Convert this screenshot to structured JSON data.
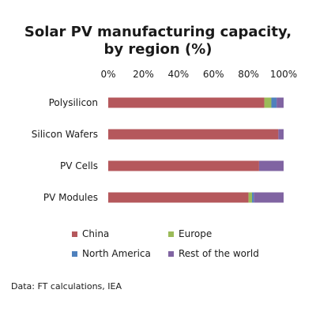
{
  "chart_data": {
    "type": "bar",
    "orientation": "horizontal",
    "stacked": true,
    "title": [
      "Solar PV manufacturing capacity,",
      "by region (%)"
    ],
    "categories": [
      "Polysilicon",
      "Silicon Wafers",
      "PV Cells",
      "PV Modules"
    ],
    "series": [
      {
        "name": "China",
        "color": "#b5585c",
        "values": [
          89,
          97,
          86,
          80
        ]
      },
      {
        "name": "Europe",
        "color": "#9bbb59",
        "values": [
          4,
          0,
          0,
          2
        ]
      },
      {
        "name": "North America",
        "color": "#4f81bd",
        "values": [
          3,
          0,
          0,
          1
        ]
      },
      {
        "name": "Rest of the world",
        "color": "#8064a2",
        "values": [
          4,
          3,
          14,
          17
        ]
      }
    ],
    "xlim": [
      0,
      100
    ],
    "x_ticks": [
      "0%",
      "20%",
      "40%",
      "60%",
      "80%",
      "100%"
    ],
    "x_tick_values": [
      0,
      20,
      40,
      60,
      80,
      100
    ],
    "x_axis_position": "top",
    "grid": false,
    "legend_placement": "bottom",
    "source": "Data: FT calculations, IEA"
  }
}
